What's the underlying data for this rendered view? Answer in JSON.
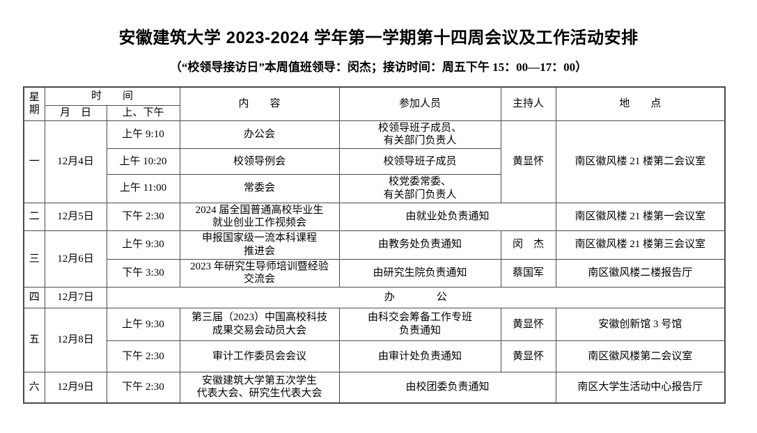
{
  "page": {
    "title": "安徽建筑大学 2023-2024 学年第一学期第十四周会议及工作活动安排",
    "subtitle": "（“校领导接访日”本周值班领导：闵杰；接访时间：周五下午 15：00—17：00）"
  },
  "table": {
    "header": {
      "day_label": "星期",
      "time_label": "时　　间",
      "date_label": "月　日",
      "ampm_label": "上、下午",
      "content_label": "内　　容",
      "participants_label": "参加人员",
      "host_label": "主持人",
      "location_label": "地　　点"
    },
    "rows": [
      [
        {
          "t": "一",
          "rs": 3
        },
        {
          "t": "12月4日",
          "rs": 3
        },
        {
          "t": "上午 9:10"
        },
        {
          "t": "办公会"
        },
        {
          "t": "校领导班子成员、\n有关部门负责人"
        },
        {
          "t": "黄显怀",
          "rs": 3
        },
        {
          "t": "南区徽风楼 21 楼第二会议室",
          "rs": 3
        }
      ],
      [
        {
          "t": "上午 10:20"
        },
        {
          "t": "校领导例会"
        },
        {
          "t": "校领导班子成员"
        }
      ],
      [
        {
          "t": "上午 11:00"
        },
        {
          "t": "常委会"
        },
        {
          "t": "校党委常委、\n有关部门负责人"
        }
      ],
      [
        {
          "t": "二"
        },
        {
          "t": "12月5日"
        },
        {
          "t": "下午 2:30"
        },
        {
          "t": "2024 届全国普通高校毕业生\n就业创业工作视频会"
        },
        {
          "t": "由就业处负责通知",
          "cs": 2
        },
        {
          "t": "南区徽风楼 21 楼第一会议室"
        }
      ],
      [
        {
          "t": "三",
          "rs": 2
        },
        {
          "t": "12月6日",
          "rs": 2
        },
        {
          "t": "上午 9:30"
        },
        {
          "t": "申报国家级一流本科课程\n推进会"
        },
        {
          "t": "由教务处负责通知"
        },
        {
          "t": "闵　杰"
        },
        {
          "t": "南区徽风楼 21 楼第三会议室"
        }
      ],
      [
        {
          "t": "下午 3:30"
        },
        {
          "t": "2023 年研究生导师培训暨经验\n交流会"
        },
        {
          "t": "由研究生院负责通知"
        },
        {
          "t": "蔡国军"
        },
        {
          "t": "南区徽风楼二楼报告厅"
        }
      ],
      [
        {
          "t": "四"
        },
        {
          "t": "12月7日"
        },
        {
          "t": "办　　　　公",
          "cs": 5
        }
      ],
      [
        {
          "t": "五",
          "rs": 2
        },
        {
          "t": "12月8日",
          "rs": 2
        },
        {
          "t": "上午 9:30"
        },
        {
          "t": "第三届（2023）中国高校科技\n成果交易会动员大会"
        },
        {
          "t": "由科交会筹备工作专班\n负责通知"
        },
        {
          "t": "黄显怀"
        },
        {
          "t": "安徽创新馆 3 号馆"
        }
      ],
      [
        {
          "t": "下午 2:30"
        },
        {
          "t": "审计工作委员会会议"
        },
        {
          "t": "由审计处负责通知"
        },
        {
          "t": "黄显怀"
        },
        {
          "t": "南区徽风楼第二会议室"
        }
      ],
      [
        {
          "t": "六"
        },
        {
          "t": "12月9日"
        },
        {
          "t": "下午 2:30"
        },
        {
          "t": "安徽建筑大学第五次学生\n代表大会、研究生代表大会"
        },
        {
          "t": "由校团委负责通知",
          "cs": 2
        },
        {
          "t": "南区大学生活动中心报告厅"
        }
      ]
    ]
  },
  "colors": {
    "border": "#4a4a4a",
    "text": "#000000",
    "background": "#ffffff"
  }
}
